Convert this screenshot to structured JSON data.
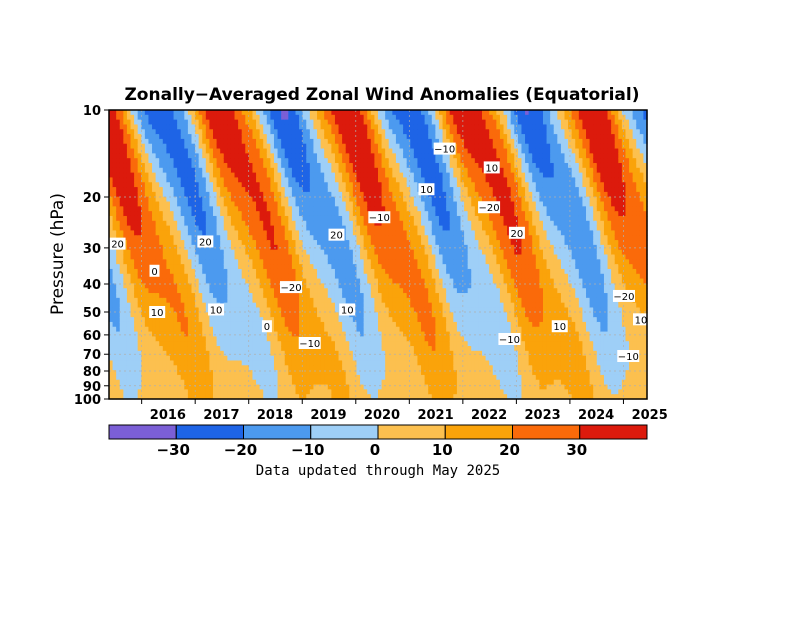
{
  "chart_data": {
    "type": "heatmap",
    "title": "Zonally−Averaged Zonal Wind Anomalies (Equatorial)",
    "ylabel": "Pressure (hPa)",
    "xlabel": "",
    "x_tick_labels": [
      "2016",
      "2017",
      "2018",
      "2019",
      "2020",
      "2021",
      "2022",
      "2023",
      "2024",
      "2025"
    ],
    "y_ticks": [
      {
        "value": 10,
        "label": "10"
      },
      {
        "value": 20,
        "label": "20"
      },
      {
        "value": 30,
        "label": "30"
      },
      {
        "value": 40,
        "label": "40"
      },
      {
        "value": 50,
        "label": "50"
      },
      {
        "value": 60,
        "label": "60"
      },
      {
        "value": 70,
        "label": "70"
      },
      {
        "value": 80,
        "label": "80"
      },
      {
        "value": 90,
        "label": "90"
      },
      {
        "value": 100,
        "label": "100"
      }
    ],
    "y_scale": "log",
    "y_inverted": true,
    "xlim": [
      2015.4,
      2025.45
    ],
    "ylim": [
      10,
      100
    ],
    "grid": true,
    "contour_interval": 10,
    "colorbar": {
      "levels": [
        -30,
        -20,
        -10,
        0,
        10,
        20,
        30
      ],
      "tick_labels": [
        "−30",
        "−20",
        "−10",
        "0",
        "10",
        "20",
        "30"
      ],
      "colors": [
        "#7b5fd6",
        "#1e64e6",
        "#4c9aef",
        "#9ecff7",
        "#fcc04f",
        "#faa30a",
        "#fa6a0a",
        "#dc1a0c"
      ]
    },
    "contour_labels": [
      {
        "text": "20",
        "x": 2015.56,
        "p": 29
      },
      {
        "text": "0",
        "x": 2016.25,
        "p": 36
      },
      {
        "text": "10",
        "x": 2016.3,
        "p": 50
      },
      {
        "text": "20",
        "x": 2017.2,
        "p": 28.5
      },
      {
        "text": "10",
        "x": 2017.4,
        "p": 49
      },
      {
        "text": "0",
        "x": 2018.35,
        "p": 56
      },
      {
        "text": "−20",
        "x": 2018.8,
        "p": 41
      },
      {
        "text": "−10",
        "x": 2019.15,
        "p": 64
      },
      {
        "text": "20",
        "x": 2019.65,
        "p": 27
      },
      {
        "text": "10",
        "x": 2019.85,
        "p": 49
      },
      {
        "text": "−10",
        "x": 2020.45,
        "p": 23.5
      },
      {
        "text": "10",
        "x": 2021.33,
        "p": 18.8
      },
      {
        "text": "−10",
        "x": 2021.67,
        "p": 13.6
      },
      {
        "text": "10",
        "x": 2022.55,
        "p": 15.8
      },
      {
        "text": "−20",
        "x": 2022.5,
        "p": 21.7
      },
      {
        "text": "20",
        "x": 2023.02,
        "p": 26.6
      },
      {
        "text": "−10",
        "x": 2022.88,
        "p": 62
      },
      {
        "text": "10",
        "x": 2023.82,
        "p": 56
      },
      {
        "text": "−20",
        "x": 2025.02,
        "p": 44
      },
      {
        "text": "−10",
        "x": 2025.1,
        "p": 71
      },
      {
        "text": "10",
        "x": 2026.4,
        "p": 53
      }
    ]
  },
  "footer_note": "Data updated through May 2025"
}
